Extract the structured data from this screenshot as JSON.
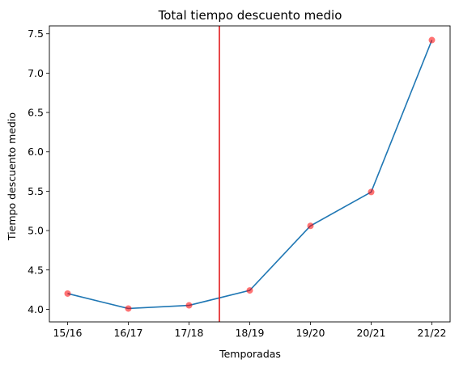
{
  "chart_data": {
    "type": "line",
    "title": "Total tiempo descuento medio",
    "xlabel": "Temporadas",
    "ylabel": "Tiempo descuento medio",
    "categories": [
      "15/16",
      "16/17",
      "17/18",
      "18/19",
      "19/20",
      "20/21",
      "21/22"
    ],
    "series": [
      {
        "values": [
          4.2,
          4.01,
          4.05,
          4.24,
          5.06,
          5.49,
          7.42
        ]
      }
    ],
    "ylim": [
      3.84,
      7.6
    ],
    "xlim": [
      -0.3,
      6.3
    ],
    "yticks": [
      "4.0",
      "4.5",
      "5.0",
      "5.5",
      "6.0",
      "6.5",
      "7.0",
      "7.5"
    ],
    "vertical_line_x": 2.5,
    "line_color": "#1f77b4",
    "marker_color": "#ff0000",
    "vline_color": "#e31a1c",
    "grid": false,
    "legend": "none"
  }
}
